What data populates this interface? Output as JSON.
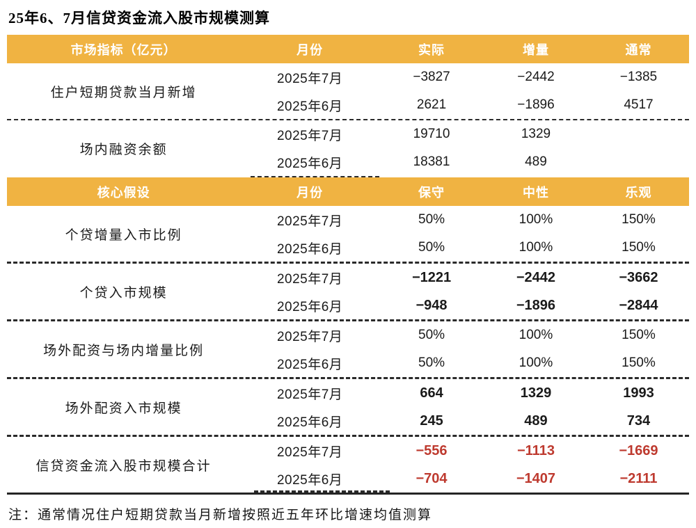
{
  "page": {
    "title": "25年6、7月信贷资金流入股市规模测算",
    "note": "注：通常情况住户短期贷款当月新增按照近五年环比增速均值测算"
  },
  "colors": {
    "header_bg": "#F0B342",
    "header_text": "#FFFFFF",
    "total_red": "#BE3A2F"
  },
  "table1": {
    "headers": [
      "市场指标（亿元）",
      "月份",
      "实际",
      "增量",
      "通常"
    ],
    "groups": [
      {
        "label": "住户短期贷款当月新增",
        "rows": [
          {
            "month": "2025年7月",
            "v1": "−3827",
            "v2": "−2442",
            "v3": "−1385"
          },
          {
            "month": "2025年6月",
            "v1": "2621",
            "v2": "−1896",
            "v3": "4517"
          }
        ]
      },
      {
        "label": "场内融资余额",
        "rows": [
          {
            "month": "2025年7月",
            "v1": "19710",
            "v2": "1329",
            "v3": ""
          },
          {
            "month": "2025年6月",
            "v1": "18381",
            "v2": "489",
            "v3": ""
          }
        ]
      }
    ]
  },
  "table2": {
    "headers": [
      "核心假设",
      "月份",
      "保守",
      "中性",
      "乐观"
    ],
    "groups": [
      {
        "label": "个贷增量入市比例",
        "rows": [
          {
            "month": "2025年7月",
            "v1": "50%",
            "v2": "100%",
            "v3": "150%"
          },
          {
            "month": "2025年6月",
            "v1": "50%",
            "v2": "100%",
            "v3": "150%"
          }
        ]
      },
      {
        "label": "个贷入市规模",
        "rows": [
          {
            "month": "2025年7月",
            "v1": "−1221",
            "v2": "−2442",
            "v3": "−3662"
          },
          {
            "month": "2025年6月",
            "v1": "−948",
            "v2": "−1896",
            "v3": "−2844"
          }
        ]
      },
      {
        "label": "场外配资与场内增量比例",
        "rows": [
          {
            "month": "2025年7月",
            "v1": "50%",
            "v2": "100%",
            "v3": "150%"
          },
          {
            "month": "2025年6月",
            "v1": "50%",
            "v2": "100%",
            "v3": "150%"
          }
        ]
      },
      {
        "label": "场外配资入市规模",
        "rows": [
          {
            "month": "2025年7月",
            "v1": "664",
            "v2": "1329",
            "v3": "1993"
          },
          {
            "month": "2025年6月",
            "v1": "245",
            "v2": "489",
            "v3": "734"
          }
        ]
      },
      {
        "label": "信贷资金流入股市规模合计",
        "rows": [
          {
            "month": "2025年7月",
            "v1": "−556",
            "v2": "−1113",
            "v3": "−1669"
          },
          {
            "month": "2025年6月",
            "v1": "−704",
            "v2": "−1407",
            "v3": "−2111"
          }
        ]
      }
    ]
  }
}
